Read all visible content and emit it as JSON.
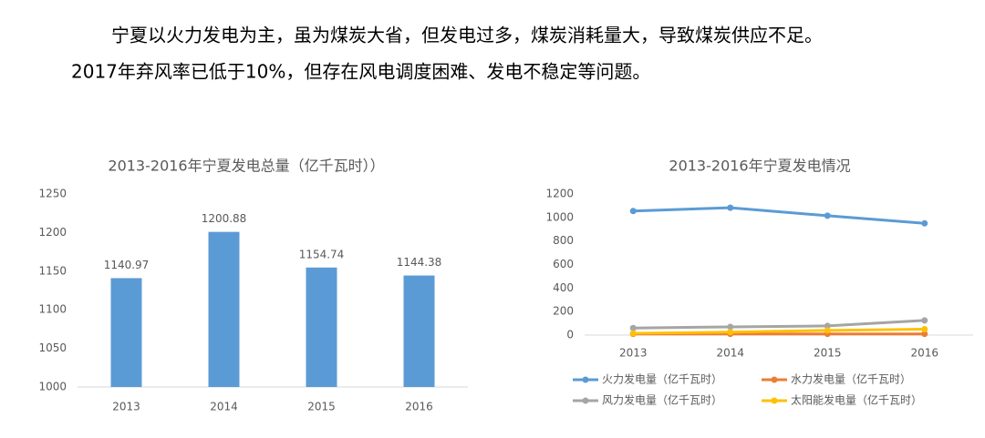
{
  "text_lines": [
    "宁夏以火力发电为主，虽为煤炭大省，但发电过多，煤炭消耗量大，导致煤炭供应不足。",
    "2017年弃风率已低于10%，但存在风电调度困难、发电不稳定等问题。"
  ],
  "chart_data": [
    {
      "type": "bar",
      "title": "2013-2016年宁夏发电总量（亿千瓦时））",
      "categories": [
        "2013",
        "2014",
        "2015",
        "2016"
      ],
      "values": [
        1140.97,
        1200.88,
        1154.74,
        1144.38
      ],
      "color": "#5b9bd5",
      "ylim": [
        1000,
        1250
      ],
      "yticks": [
        1000,
        1050,
        1100,
        1150,
        1200,
        1250
      ],
      "grid": false
    },
    {
      "type": "line",
      "title": "2013-2016年宁夏发电情况",
      "categories": [
        "2013",
        "2014",
        "2015",
        "2016"
      ],
      "series": [
        {
          "name": "火力发电量（亿千瓦时）",
          "color": "#5b9bd5",
          "values": [
            1055,
            1083,
            1015,
            950
          ]
        },
        {
          "name": "水力发电量（亿千瓦时）",
          "color": "#ed7d31",
          "values": [
            10,
            10,
            10,
            10
          ]
        },
        {
          "name": "风力发电量（亿千瓦时）",
          "color": "#a5a5a5",
          "values": [
            60,
            70,
            78,
            125
          ]
        },
        {
          "name": "太阳能发电量（亿千瓦时）",
          "color": "#ffc000",
          "values": [
            15,
            25,
            40,
            50
          ]
        }
      ],
      "ylim": [
        0,
        1200
      ],
      "yticks": [
        0,
        200,
        400,
        600,
        800,
        1000,
        1200
      ],
      "grid": false,
      "legend": "bottom"
    }
  ]
}
